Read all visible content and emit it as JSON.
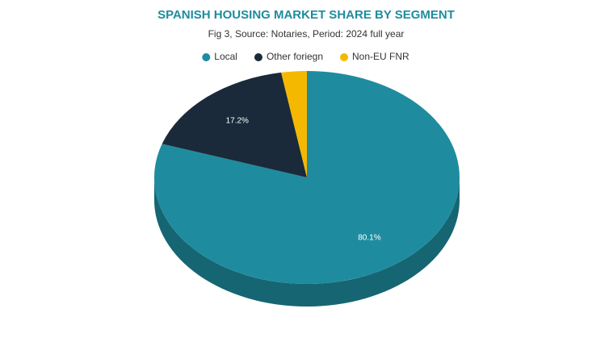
{
  "chart_data": {
    "type": "pie",
    "title": "SPANISH HOUSING MARKET SHARE BY SEGMENT",
    "subtitle": "Fig 3, Source: Notaries, Period: 2024 full year",
    "categories": [
      "Local",
      "Other foriegn",
      "Non-EU FNR"
    ],
    "values": [
      80.1,
      17.2,
      2.7
    ],
    "value_labels": [
      "80.1%",
      "17.2%",
      null
    ],
    "colors": [
      "#1e8c9e",
      "#1a2a3a",
      "#f5b800"
    ],
    "legend": "top"
  }
}
